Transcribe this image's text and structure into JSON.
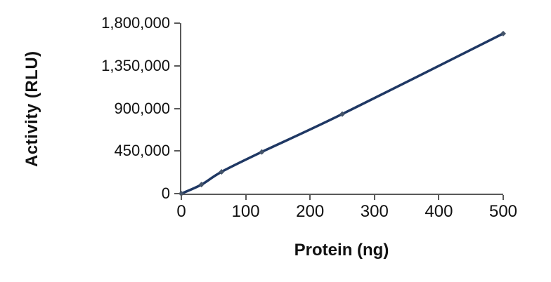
{
  "chart_data": {
    "type": "line",
    "title": "",
    "xlabel": "Protein (ng)",
    "ylabel": "Activity (RLU)",
    "x": [
      0,
      31.25,
      62.5,
      125,
      250,
      500
    ],
    "series": [
      {
        "name": "Activity",
        "values": [
          0,
          95000,
          230000,
          440000,
          840000,
          1690000
        ]
      }
    ],
    "xlim": [
      0,
      500
    ],
    "ylim": [
      0,
      1800000
    ],
    "xticks": [
      0,
      100,
      200,
      300,
      400,
      500
    ],
    "xtick_labels": [
      "0",
      "100",
      "200",
      "300",
      "400",
      "500"
    ],
    "yticks": [
      0,
      450000,
      900000,
      1350000,
      1800000
    ],
    "ytick_labels": [
      "0",
      "450,000",
      "900,000",
      "1,350,000",
      "1,800,000"
    ],
    "grid": false,
    "legend": false,
    "line_color": "#1f3864",
    "marker_color": "#44546a",
    "axis_color": "#595959",
    "text_color": "#111111",
    "background_color": "#ffffff"
  }
}
